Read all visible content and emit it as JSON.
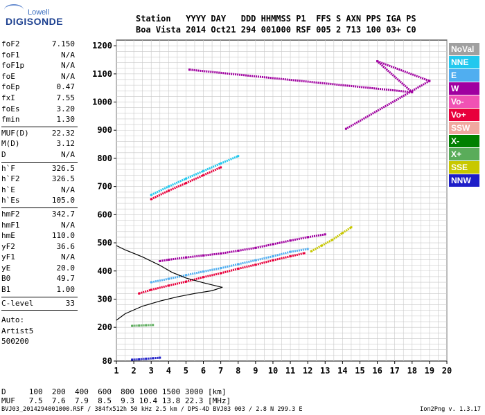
{
  "logo": {
    "small": "Lowell",
    "big": "DIGISONDE"
  },
  "header": {
    "line1": "Station   YYYY DAY   DDD HHMMSS P1  FFS S AXN PPS IGA PS",
    "line2": "Boa Vista 2014 Oct21 294 001000 RSF 005 2 713 100 03+ C0"
  },
  "params": {
    "group1": [
      {
        "name": "foF2",
        "value": "7.150"
      },
      {
        "name": "foF1",
        "value": "N/A"
      },
      {
        "name": "foF1p",
        "value": "N/A"
      },
      {
        "name": "foE",
        "value": "N/A"
      },
      {
        "name": "foEp",
        "value": "0.47"
      },
      {
        "name": "fxI",
        "value": "7.55"
      },
      {
        "name": "foEs",
        "value": "3.20"
      },
      {
        "name": "fmin",
        "value": "1.30"
      }
    ],
    "group2": [
      {
        "name": "MUF(D)",
        "value": "22.32"
      },
      {
        "name": "M(D)",
        "value": "3.12"
      },
      {
        "name": "D",
        "value": "N/A"
      }
    ],
    "group3": [
      {
        "name": "h`F",
        "value": "326.5"
      },
      {
        "name": "h`F2",
        "value": "326.5"
      },
      {
        "name": "h`E",
        "value": "N/A"
      },
      {
        "name": "h`Es",
        "value": "105.0"
      }
    ],
    "group4": [
      {
        "name": "hmF2",
        "value": "342.7"
      },
      {
        "name": "hmF1",
        "value": "N/A"
      },
      {
        "name": "hmE",
        "value": "110.0"
      },
      {
        "name": "yF2",
        "value": "36.6"
      },
      {
        "name": "yF1",
        "value": "N/A"
      },
      {
        "name": "yE",
        "value": "20.0"
      },
      {
        "name": "B0",
        "value": "49.7"
      },
      {
        "name": "B1",
        "value": "1.00"
      }
    ],
    "clevel": {
      "name": "C-level",
      "value": "33"
    },
    "auto": [
      "Auto:",
      "Artist5",
      "500200"
    ]
  },
  "legend": [
    {
      "label": "NoVal",
      "color": "#a0a0a0"
    },
    {
      "label": "NNE",
      "color": "#22c8ee"
    },
    {
      "label": "E",
      "color": "#50aef0"
    },
    {
      "label": "W",
      "color": "#a000a0"
    },
    {
      "label": "Vo-",
      "color": "#f052b4"
    },
    {
      "label": "Vo+",
      "color": "#e8003c"
    },
    {
      "label": "SSW",
      "color": "#f0a8a0"
    },
    {
      "label": "X-",
      "color": "#008000"
    },
    {
      "label": "X+",
      "color": "#5aac5a"
    },
    {
      "label": "SSE",
      "color": "#c8c800"
    },
    {
      "label": "NNW",
      "color": "#1e1ec8"
    }
  ],
  "footer": {
    "d_row": "D     100  200  400  600  800 1000 1500 3000 [km]",
    "muf_row": "MUF   7.5  7.6  7.9  8.5  9.3 10.4 13.8 22.3 [MHz]",
    "file": "BVJ03_2014294001000.RSF / 384fx512h 50 kHz 2.5 km / DPS-4D BVJ03 003 / 2.8 N 299.3 E",
    "version": "Ion2Png v. 1.3.17"
  },
  "chart_data": {
    "type": "scatter",
    "xlabel": "",
    "ylabel": "",
    "xlim": [
      1,
      20
    ],
    "ylim": [
      80,
      1220
    ],
    "x_ticks": [
      1,
      2,
      3,
      4,
      5,
      6,
      7,
      8,
      9,
      10,
      11,
      12,
      13,
      14,
      15,
      16,
      17,
      18,
      19,
      20
    ],
    "y_ticks": [
      80,
      200,
      300,
      400,
      500,
      600,
      700,
      800,
      900,
      1000,
      1100,
      1200
    ],
    "grid": true,
    "layers": [
      {
        "name": "Es trace",
        "color": "#1e1ec8",
        "points": [
          [
            1.9,
            85
          ],
          [
            2.3,
            86
          ],
          [
            2.7,
            88
          ],
          [
            3.1,
            90
          ],
          [
            3.5,
            92
          ]
        ]
      },
      {
        "name": "Es 2nd",
        "color": "#5aac5a",
        "points": [
          [
            1.9,
            205
          ],
          [
            2.3,
            206
          ],
          [
            2.7,
            207
          ],
          [
            3.1,
            208
          ]
        ]
      },
      {
        "name": "F trace O",
        "color": "#e8003c",
        "points": [
          [
            2.3,
            320
          ],
          [
            3,
            333
          ],
          [
            4,
            348
          ],
          [
            5,
            362
          ],
          [
            6,
            378
          ],
          [
            7,
            392
          ],
          [
            8,
            408
          ],
          [
            9,
            422
          ],
          [
            10,
            438
          ],
          [
            11,
            452
          ],
          [
            11.8,
            463
          ]
        ]
      },
      {
        "name": "F trace W",
        "color": "#a000a0",
        "points": [
          [
            3.5,
            435
          ],
          [
            4,
            440
          ],
          [
            5,
            448
          ],
          [
            6,
            455
          ],
          [
            7,
            462
          ],
          [
            8,
            472
          ],
          [
            9,
            482
          ],
          [
            10,
            495
          ],
          [
            11,
            508
          ],
          [
            12,
            520
          ],
          [
            13,
            530
          ]
        ]
      },
      {
        "name": "F trace E",
        "color": "#50aef0",
        "points": [
          [
            3,
            360
          ],
          [
            4,
            372
          ],
          [
            5,
            385
          ],
          [
            6,
            398
          ],
          [
            7,
            410
          ],
          [
            8,
            424
          ],
          [
            9,
            438
          ],
          [
            10,
            452
          ],
          [
            11,
            468
          ],
          [
            12,
            478
          ]
        ]
      },
      {
        "name": "SSE trace",
        "color": "#c8c800",
        "points": [
          [
            12.2,
            470
          ],
          [
            12.8,
            490
          ],
          [
            13.4,
            510
          ],
          [
            14,
            535
          ],
          [
            14.5,
            555
          ]
        ]
      },
      {
        "name": "2F trace NNE",
        "color": "#22c8ee",
        "points": [
          [
            3,
            670
          ],
          [
            4,
            700
          ],
          [
            5,
            728
          ],
          [
            6,
            755
          ],
          [
            7,
            782
          ],
          [
            8,
            808
          ]
        ]
      },
      {
        "name": "2F trace O",
        "color": "#e8003c",
        "points": [
          [
            3,
            655
          ],
          [
            4,
            685
          ],
          [
            5,
            712
          ],
          [
            6,
            740
          ],
          [
            7,
            768
          ]
        ]
      },
      {
        "name": "scatter",
        "color": "#a000a0",
        "points": [
          [
            5.2,
            1115
          ],
          [
            18,
            1035
          ],
          [
            16,
            1145
          ],
          [
            19,
            1075
          ],
          [
            14.2,
            905
          ]
        ]
      },
      {
        "name": "profile",
        "color": "#000000",
        "points": [
          [
            1,
            225
          ],
          [
            1.5,
            248
          ],
          [
            2.5,
            275
          ],
          [
            3.5,
            293
          ],
          [
            4.5,
            308
          ],
          [
            5.5,
            320
          ],
          [
            6.5,
            330
          ],
          [
            7.1,
            342
          ],
          [
            7,
            343
          ],
          [
            6,
            358
          ],
          [
            5,
            375
          ],
          [
            4.2,
            395
          ],
          [
            3.5,
            420
          ],
          [
            2.5,
            450
          ],
          [
            1.5,
            475
          ],
          [
            1,
            490
          ]
        ]
      }
    ]
  }
}
